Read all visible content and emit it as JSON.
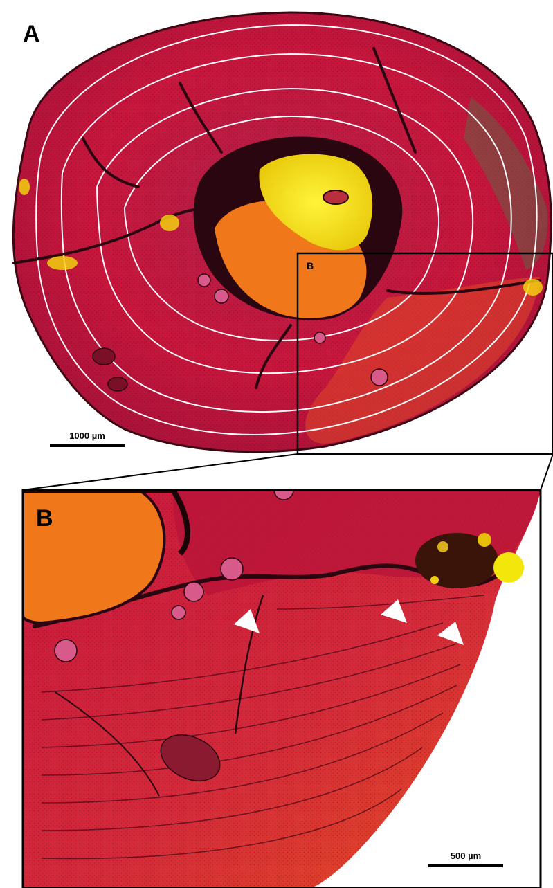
{
  "panel_a": {
    "label": "A",
    "inset_label": "B",
    "scale_bar_text": "1000 µm"
  },
  "panel_b": {
    "label": "B",
    "scale_bar_text": "500 µm",
    "arrowhead_count": 3
  },
  "colors": {
    "bone_red": "#c8163c",
    "bone_orange": "#e8501e",
    "medullary_yellow": "#f2e60a",
    "cavity_orange": "#f0781a",
    "crack_dark": "#2a0610",
    "growth_line": "#ffffff"
  }
}
